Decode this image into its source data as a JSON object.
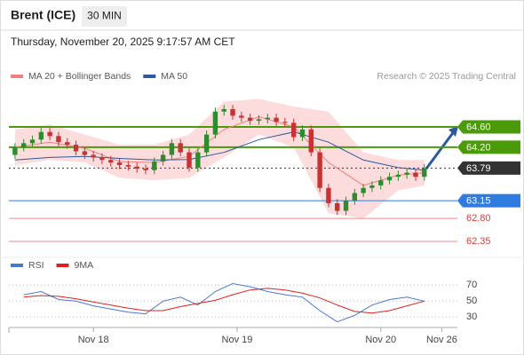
{
  "header": {
    "symbol": "Brent (ICE)",
    "interval": "30 MIN",
    "timestamp": "Thursday, November 20, 2025 9:17:57 AM CET",
    "credit": "Research © 2025 Trading Central"
  },
  "chart_data": [
    {
      "type": "candlestick",
      "x": [
        1,
        2,
        3,
        4,
        5,
        6,
        7,
        8,
        9,
        10,
        11,
        12,
        13,
        14,
        15,
        16,
        17,
        18,
        19,
        20,
        21,
        22,
        23,
        24,
        25,
        26,
        27,
        28,
        29,
        30,
        31,
        32,
        33,
        34,
        35,
        36,
        37,
        38,
        39,
        40,
        41,
        42,
        43,
        44,
        45,
        46,
        47,
        48
      ],
      "open": [
        64.05,
        64.2,
        64.28,
        64.35,
        64.5,
        64.42,
        64.3,
        64.25,
        64.12,
        64.05,
        64.0,
        63.95,
        63.9,
        63.85,
        63.82,
        63.78,
        63.75,
        63.92,
        64.05,
        64.28,
        64.1,
        63.8,
        64.1,
        64.45,
        64.9,
        64.95,
        64.82,
        64.78,
        64.72,
        64.75,
        64.78,
        64.7,
        64.68,
        64.4,
        64.55,
        64.1,
        63.4,
        63.1,
        62.95,
        63.15,
        63.3,
        63.4,
        63.45,
        63.55,
        63.62,
        63.66,
        63.7,
        63.62
      ],
      "high": [
        64.28,
        64.36,
        64.43,
        64.58,
        64.58,
        64.5,
        64.38,
        64.33,
        64.2,
        64.13,
        64.08,
        64.03,
        63.98,
        63.93,
        63.9,
        63.86,
        64.0,
        64.13,
        64.36,
        64.36,
        64.18,
        64.18,
        64.53,
        64.98,
        65.03,
        65.03,
        64.9,
        64.86,
        64.83,
        64.86,
        64.86,
        64.78,
        64.76,
        64.63,
        64.63,
        64.18,
        63.48,
        63.18,
        63.23,
        63.38,
        63.48,
        63.53,
        63.63,
        63.7,
        63.74,
        63.78,
        63.78,
        63.87
      ],
      "low": [
        63.97,
        64.12,
        64.2,
        64.27,
        64.34,
        64.22,
        64.17,
        64.04,
        63.97,
        63.92,
        63.87,
        63.82,
        63.77,
        63.74,
        63.7,
        63.67,
        63.67,
        63.84,
        63.97,
        64.02,
        63.72,
        63.72,
        64.02,
        64.37,
        64.82,
        64.74,
        64.7,
        64.64,
        64.64,
        64.67,
        64.62,
        64.6,
        64.32,
        64.32,
        64.02,
        63.32,
        63.02,
        62.87,
        62.87,
        63.07,
        63.22,
        63.32,
        63.37,
        63.47,
        63.54,
        63.58,
        63.54,
        63.54
      ],
      "close": [
        64.2,
        64.28,
        64.35,
        64.5,
        64.42,
        64.3,
        64.25,
        64.12,
        64.05,
        64.0,
        63.95,
        63.9,
        63.85,
        63.82,
        63.78,
        63.75,
        63.92,
        64.05,
        64.28,
        64.1,
        63.8,
        64.1,
        64.45,
        64.9,
        64.95,
        64.82,
        64.78,
        64.72,
        64.75,
        64.78,
        64.7,
        64.68,
        64.4,
        64.55,
        64.1,
        63.4,
        63.1,
        62.95,
        63.15,
        63.3,
        63.4,
        63.45,
        63.55,
        63.62,
        63.66,
        63.7,
        63.62,
        63.79
      ],
      "up_color": "#2e8b2e",
      "down_color": "#c83232",
      "series": [
        {
          "name": "MA 20 + Bollinger Bands",
          "color": "#f08080",
          "band_color": "#fcdcdc",
          "x": [
            1,
            5,
            9,
            13,
            17,
            21,
            25,
            29,
            33,
            37,
            41,
            45,
            48
          ],
          "values": [
            64.2,
            64.3,
            64.18,
            63.92,
            63.9,
            64.02,
            64.55,
            64.8,
            64.6,
            63.9,
            63.45,
            63.65,
            63.7
          ],
          "upper": [
            64.55,
            64.65,
            64.45,
            64.25,
            64.25,
            64.45,
            65.1,
            65.15,
            65.0,
            64.9,
            64.1,
            63.95,
            63.95
          ],
          "lower": [
            63.85,
            63.95,
            63.9,
            63.6,
            63.55,
            63.6,
            64.0,
            64.45,
            64.2,
            62.9,
            62.8,
            63.35,
            63.45
          ]
        },
        {
          "name": "MA 50",
          "color": "#2c5aa0",
          "x": [
            1,
            5,
            9,
            13,
            17,
            21,
            25,
            29,
            33,
            37,
            41,
            45,
            48
          ],
          "values": [
            63.95,
            64.0,
            64.02,
            63.98,
            63.95,
            63.96,
            64.1,
            64.35,
            64.5,
            64.3,
            63.95,
            63.8,
            63.75
          ]
        }
      ],
      "levels": [
        {
          "value": 64.6,
          "label": "64.60",
          "color": "#4a9a0a",
          "style": "tag"
        },
        {
          "value": 64.2,
          "label": "64.20",
          "color": "#4a9a0a",
          "style": "tag"
        },
        {
          "value": 63.79,
          "label": "63.79",
          "color": "#333333",
          "style": "current"
        },
        {
          "value": 63.15,
          "label": "63.15",
          "color": "#2f7be0",
          "style": "tag"
        },
        {
          "value": 62.8,
          "label": "62.80",
          "color": "#e03c3c",
          "style": "text"
        },
        {
          "value": 62.35,
          "label": "62.35",
          "color": "#e03c3c",
          "style": "text"
        }
      ],
      "xlim": [
        0.5,
        52
      ],
      "ylim": [
        62.1,
        65.5
      ],
      "xticks": [
        {
          "value": 10,
          "label": "Nov 18"
        },
        {
          "value": 26.5,
          "label": "Nov 19"
        },
        {
          "value": 43,
          "label": "Nov 20"
        },
        {
          "value": 50,
          "label": "Nov 26"
        }
      ]
    },
    {
      "type": "line",
      "series": [
        {
          "name": "RSI",
          "color": "#4a78d0",
          "x": [
            2,
            4,
            6,
            8,
            10,
            12,
            14,
            16,
            18,
            20,
            22,
            24,
            26,
            28,
            30,
            32,
            34,
            36,
            38,
            40,
            42,
            44,
            46,
            48
          ],
          "values": [
            58,
            62,
            52,
            50,
            44,
            40,
            36,
            34,
            50,
            55,
            45,
            62,
            72,
            68,
            62,
            58,
            55,
            38,
            24,
            32,
            45,
            52,
            55,
            50
          ]
        },
        {
          "name": "9MA",
          "color": "#e02020",
          "x": [
            2,
            4,
            6,
            8,
            10,
            12,
            14,
            16,
            18,
            20,
            22,
            24,
            26,
            28,
            30,
            32,
            34,
            36,
            38,
            40,
            42,
            44,
            46,
            48
          ],
          "values": [
            55,
            57,
            56,
            53,
            49,
            45,
            41,
            38,
            38,
            43,
            47,
            51,
            58,
            64,
            66,
            64,
            60,
            54,
            45,
            37,
            35,
            38,
            44,
            50
          ]
        }
      ],
      "xlim": [
        0.5,
        52
      ],
      "ylim": [
        18,
        77
      ],
      "yticks": [
        30,
        50,
        70
      ],
      "grid": true
    }
  ]
}
